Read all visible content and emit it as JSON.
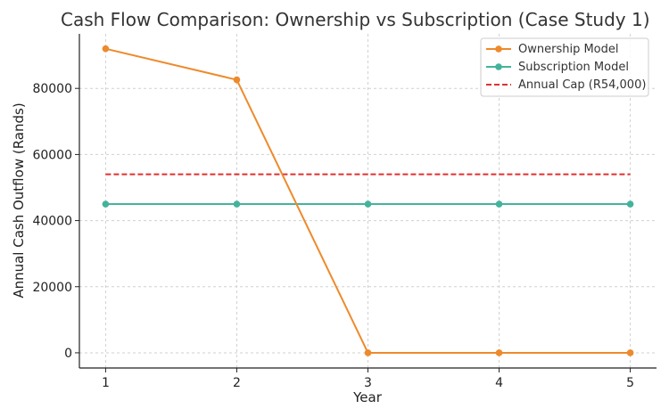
{
  "chart_data": {
    "type": "line",
    "title": "Cash Flow Comparison: Ownership vs Subscription (Case Study 1)",
    "xlabel": "Year",
    "ylabel": "Annual Cash Outflow (Rands)",
    "x": [
      1,
      2,
      3,
      4,
      5
    ],
    "xlim": [
      0.8,
      5.2
    ],
    "ylim": [
      -4600,
      96500
    ],
    "yticks": [
      0,
      20000,
      40000,
      60000,
      80000
    ],
    "grid": true,
    "legend_position": "top-right",
    "series": [
      {
        "name": "Ownership Model",
        "values": [
          92000,
          82600,
          0,
          0,
          0
        ],
        "color": "#ee8a2b",
        "style": "solid",
        "markers": true
      },
      {
        "name": "Subscription Model",
        "values": [
          45000,
          45000,
          45000,
          45000,
          45000
        ],
        "color": "#44b39b",
        "style": "solid",
        "markers": true
      },
      {
        "name": "Annual Cap (R54,000)",
        "values": [
          54000,
          54000,
          54000,
          54000,
          54000
        ],
        "color": "#e03030",
        "style": "dashed",
        "markers": false
      }
    ]
  }
}
